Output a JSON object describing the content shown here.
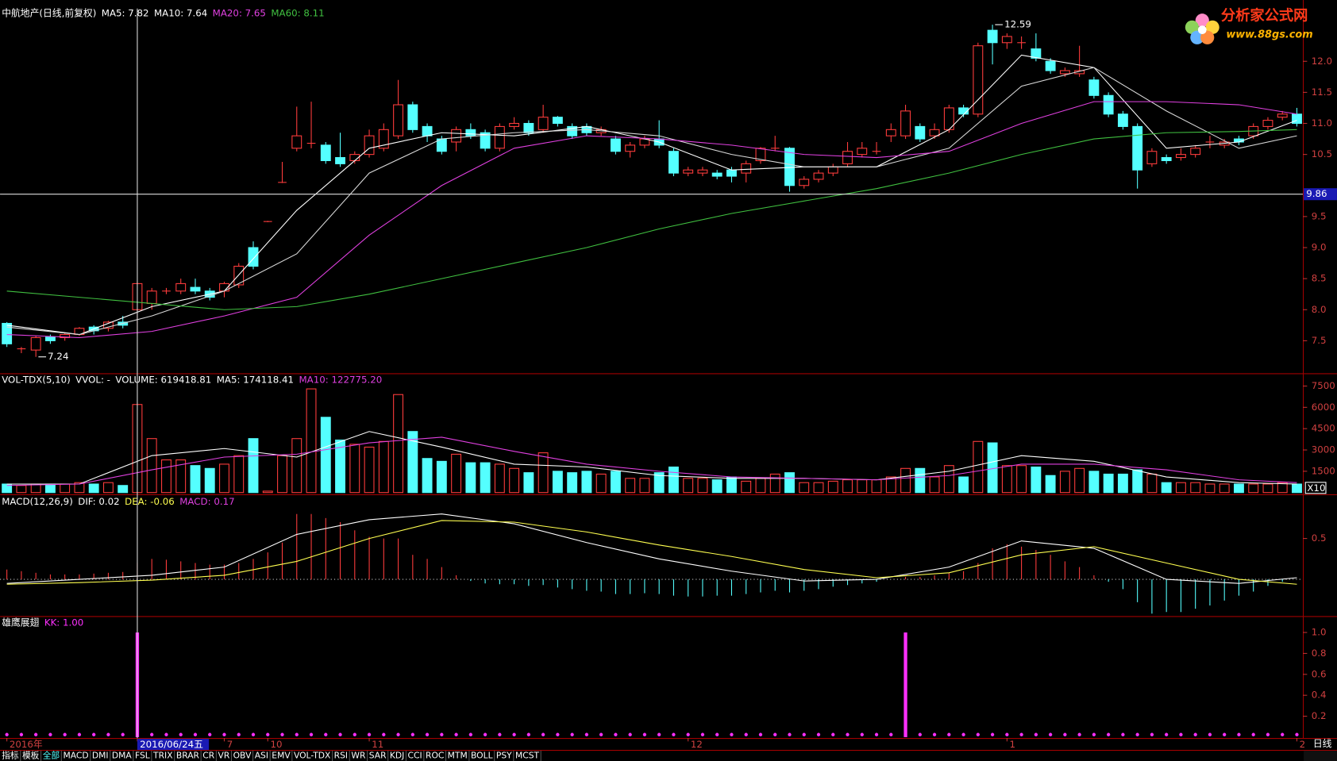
{
  "chart_data": [
    {
      "type": "candlestick",
      "header": [
        {
          "text": "中航地产(日线,前复权)",
          "color": "#ffffff"
        },
        {
          "text": "MA5: 7.82",
          "color": "#ffffff"
        },
        {
          "text": "MA10: 7.64",
          "color": "#ffffff"
        },
        {
          "text": "MA20: 7.65",
          "color": "#e040e0"
        },
        {
          "text": "MA60: 8.11",
          "color": "#40c040"
        }
      ],
      "categories": [
        "2016年",
        null,
        null,
        null,
        null,
        null,
        null,
        null,
        null,
        "2016/06/24五",
        null,
        null,
        null,
        null,
        null,
        "7",
        null,
        null,
        "10",
        null,
        null,
        null,
        null,
        null,
        null,
        "11",
        null,
        null,
        null,
        null,
        null,
        null,
        null,
        null,
        null,
        null,
        null,
        null,
        null,
        null,
        null,
        null,
        null,
        null,
        null,
        null,
        null,
        "12",
        null,
        null,
        null,
        null,
        null,
        null,
        null,
        null,
        null,
        null,
        null,
        null,
        null,
        null,
        null,
        null,
        null,
        null,
        null,
        null,
        null,
        "1",
        null,
        null,
        null,
        null,
        null,
        null,
        null,
        null,
        null,
        null,
        null,
        null,
        null,
        null,
        null,
        null,
        null,
        null,
        null,
        "2"
      ],
      "open": [
        7.78,
        7.37,
        7.35,
        7.56,
        7.55,
        7.6,
        7.72,
        7.7,
        7.8,
        8.0,
        8.1,
        8.3,
        8.3,
        8.36,
        8.3,
        8.3,
        8.4,
        9.0,
        9.42,
        10.05,
        10.6,
        10.68,
        10.65,
        10.45,
        10.4,
        10.5,
        10.6,
        10.8,
        11.3,
        10.95,
        10.75,
        10.7,
        10.9,
        10.85,
        10.6,
        10.95,
        11.0,
        10.9,
        11.1,
        10.95,
        10.95,
        10.85,
        10.75,
        10.55,
        10.65,
        10.75,
        10.55,
        10.2,
        10.2,
        10.2,
        10.25,
        10.2,
        10.4,
        10.6,
        10.6,
        10.0,
        10.1,
        10.2,
        10.35,
        10.5,
        10.55,
        10.8,
        10.8,
        10.95,
        10.8,
        10.9,
        11.25,
        11.15,
        12.5,
        12.3,
        12.3,
        12.2,
        12.0,
        11.8,
        11.8,
        11.7,
        11.45,
        11.15,
        10.95,
        10.35,
        10.45,
        10.45,
        10.5,
        10.7,
        10.65,
        10.75,
        10.8,
        10.95,
        11.1,
        11.15
      ],
      "high": [
        7.8,
        7.4,
        7.58,
        7.6,
        7.62,
        7.72,
        7.75,
        7.82,
        7.9,
        8.45,
        8.35,
        8.35,
        8.5,
        8.5,
        8.35,
        8.45,
        8.75,
        9.1,
        9.43,
        10.38,
        11.27,
        11.35,
        10.7,
        10.85,
        10.55,
        10.9,
        11.0,
        11.7,
        11.35,
        11.0,
        10.8,
        10.95,
        11.0,
        10.9,
        11.0,
        11.1,
        11.05,
        11.3,
        11.12,
        11.0,
        11.0,
        10.95,
        10.8,
        10.7,
        10.8,
        11.05,
        10.6,
        10.3,
        10.3,
        10.25,
        10.3,
        10.4,
        10.62,
        10.8,
        10.62,
        10.15,
        10.25,
        10.35,
        10.7,
        10.7,
        10.7,
        11.0,
        11.3,
        11.0,
        11.0,
        11.3,
        11.3,
        12.3,
        12.59,
        12.45,
        12.4,
        12.45,
        12.05,
        11.9,
        12.25,
        11.75,
        11.5,
        11.2,
        11.0,
        10.6,
        10.5,
        10.6,
        10.65,
        10.8,
        10.75,
        10.8,
        11.0,
        11.1,
        11.2,
        11.25
      ],
      "low": [
        7.4,
        7.3,
        7.24,
        7.45,
        7.5,
        7.58,
        7.6,
        7.65,
        7.7,
        7.6,
        8.0,
        8.25,
        8.25,
        8.25,
        8.15,
        8.2,
        8.35,
        8.65,
        9.41,
        10.04,
        10.55,
        10.6,
        10.35,
        10.3,
        10.35,
        10.45,
        10.55,
        10.75,
        10.85,
        10.7,
        10.5,
        10.55,
        10.75,
        10.55,
        10.55,
        10.9,
        10.8,
        10.85,
        10.95,
        10.75,
        10.8,
        10.8,
        10.5,
        10.45,
        10.6,
        10.6,
        10.15,
        10.15,
        10.15,
        10.1,
        10.05,
        10.05,
        10.35,
        10.55,
        9.9,
        9.95,
        10.05,
        10.15,
        10.3,
        10.45,
        10.5,
        10.7,
        10.75,
        10.7,
        10.75,
        10.85,
        11.1,
        11.1,
        11.95,
        12.2,
        12.2,
        12.0,
        11.8,
        11.75,
        11.75,
        11.4,
        11.1,
        10.9,
        9.95,
        10.3,
        10.35,
        10.4,
        10.45,
        10.6,
        10.6,
        10.65,
        10.75,
        10.9,
        11.05,
        10.95
      ],
      "close": [
        7.45,
        7.37,
        7.55,
        7.5,
        7.6,
        7.7,
        7.66,
        7.8,
        7.75,
        8.42,
        8.3,
        8.3,
        8.42,
        8.3,
        8.2,
        8.42,
        8.7,
        8.7,
        9.42,
        10.05,
        10.8,
        10.68,
        10.4,
        10.35,
        10.5,
        10.8,
        10.9,
        11.3,
        10.9,
        10.8,
        10.55,
        10.9,
        10.8,
        10.6,
        10.95,
        11.0,
        10.85,
        11.1,
        11.0,
        10.8,
        10.85,
        10.9,
        10.55,
        10.65,
        10.75,
        10.65,
        10.2,
        10.25,
        10.25,
        10.15,
        10.15,
        10.35,
        10.6,
        10.6,
        10.0,
        10.1,
        10.2,
        10.3,
        10.55,
        10.6,
        10.55,
        10.9,
        11.2,
        10.75,
        10.9,
        11.25,
        11.15,
        12.25,
        12.3,
        12.4,
        12.3,
        12.05,
        11.85,
        11.85,
        11.85,
        11.45,
        11.15,
        10.95,
        10.25,
        10.55,
        10.4,
        10.5,
        10.6,
        10.7,
        10.7,
        10.7,
        10.95,
        11.05,
        11.15,
        11.0
      ],
      "up_color": "#ff3c3c",
      "down_color": "#54ffff",
      "series": [
        {
          "color": "#ffffff",
          "x": [
            0,
            5,
            10,
            15,
            20,
            25,
            30,
            35,
            40,
            45,
            50,
            55,
            60,
            65,
            70,
            75,
            80,
            85,
            89
          ],
          "values": [
            7.75,
            7.6,
            8.05,
            8.3,
            9.6,
            10.6,
            10.85,
            10.8,
            10.95,
            10.7,
            10.25,
            10.3,
            10.3,
            10.9,
            12.1,
            11.9,
            10.6,
            10.7,
            11.05
          ]
        },
        {
          "color": "#d8d8d8",
          "x": [
            0,
            5,
            10,
            15,
            20,
            25,
            30,
            35,
            40,
            45,
            50,
            55,
            60,
            65,
            70,
            75,
            80,
            85,
            89
          ],
          "values": [
            7.72,
            7.6,
            7.9,
            8.3,
            8.9,
            10.2,
            10.75,
            10.85,
            10.9,
            10.8,
            10.5,
            10.3,
            10.3,
            10.6,
            11.6,
            11.9,
            11.2,
            10.6,
            10.8
          ]
        },
        {
          "color": "#e040e0",
          "x": [
            0,
            5,
            10,
            15,
            20,
            25,
            30,
            35,
            40,
            45,
            50,
            55,
            60,
            65,
            70,
            75,
            80,
            85,
            89
          ],
          "values": [
            7.6,
            7.55,
            7.65,
            7.9,
            8.2,
            9.2,
            10.0,
            10.6,
            10.8,
            10.75,
            10.65,
            10.5,
            10.45,
            10.55,
            11.0,
            11.35,
            11.35,
            11.3,
            11.15
          ]
        },
        {
          "color": "#40c040",
          "x": [
            0,
            5,
            10,
            15,
            20,
            25,
            30,
            35,
            40,
            45,
            50,
            55,
            60,
            65,
            70,
            75,
            80,
            85,
            89
          ],
          "values": [
            8.3,
            8.2,
            8.1,
            8.0,
            8.05,
            8.25,
            8.5,
            8.75,
            9.0,
            9.3,
            9.55,
            9.75,
            9.95,
            10.2,
            10.5,
            10.75,
            10.85,
            10.87,
            10.9
          ]
        }
      ],
      "annotations": [
        {
          "x": 68,
          "y": 12.59
        },
        {
          "x": 2,
          "y": 7.24
        }
      ],
      "cursor": {
        "x": 9,
        "y": 9.86
      },
      "ylim": [
        6.99,
        12.85
      ],
      "yticks": [
        7.5,
        {
          "value": 8,
          "label": "8.0"
        },
        8.5,
        {
          "value": 9,
          "label": "9.0"
        },
        9.5,
        10.5,
        {
          "value": 11,
          "label": "11.0"
        },
        11.5,
        {
          "value": 12,
          "label": "12.0"
        }
      ]
    },
    {
      "type": "bar",
      "bar_style": "volume",
      "header": [
        {
          "text": "VOL-TDX(5,10)",
          "color": "#ffffff"
        },
        {
          "text": "VVOL: -",
          "color": "#ffffff"
        },
        {
          "text": "VOLUME: 619418.81",
          "color": "#ffffff"
        },
        {
          "text": "MA5: 174118.41",
          "color": "#ffffff"
        },
        {
          "text": "MA10: 122775.20",
          "color": "#e040e0"
        }
      ],
      "values": [
        600,
        500,
        600,
        600,
        600,
        700,
        600,
        700,
        500,
        6200,
        3800,
        2300,
        2300,
        1900,
        1700,
        2000,
        2600,
        3800,
        100,
        2600,
        3800,
        7300,
        5300,
        3700,
        3400,
        3200,
        3600,
        6900,
        4300,
        2400,
        2200,
        2700,
        2100,
        2100,
        2000,
        1700,
        1400,
        2800,
        1500,
        1400,
        1500,
        1300,
        1500,
        1000,
        1000,
        1400,
        1800,
        1000,
        1000,
        900,
        1100,
        800,
        1000,
        1300,
        1400,
        700,
        700,
        800,
        900,
        900,
        900,
        1100,
        1700,
        1700,
        1100,
        1900,
        1100,
        3600,
        3500,
        1900,
        1900,
        1800,
        1200,
        1500,
        1700,
        1500,
        1300,
        1300,
        1600,
        1300,
        700,
        700,
        700,
        600,
        600,
        600,
        600,
        600,
        700,
        600
      ],
      "series": [
        {
          "color": "#ffffff",
          "x": [
            0,
            5,
            10,
            15,
            20,
            25,
            30,
            35,
            40,
            45,
            50,
            55,
            60,
            65,
            70,
            75,
            80,
            85,
            89
          ],
          "values": [
            600,
            600,
            2600,
            3100,
            2500,
            4300,
            3200,
            2000,
            1800,
            1200,
            1000,
            1000,
            900,
            1500,
            2600,
            2200,
            1100,
            700,
            600
          ]
        },
        {
          "color": "#e040e0",
          "x": [
            0,
            5,
            10,
            15,
            20,
            25,
            30,
            35,
            40,
            45,
            50,
            55,
            60,
            65,
            70,
            75,
            80,
            85,
            89
          ],
          "values": [
            500,
            600,
            1600,
            2500,
            2700,
            3500,
            3900,
            2900,
            2000,
            1500,
            1100,
            1000,
            900,
            1200,
            2000,
            2000,
            1600,
            900,
            700
          ]
        }
      ],
      "scale_label": "X10",
      "ylim": [
        0,
        8280
      ],
      "yticks": [
        1500,
        3000,
        4500,
        6000,
        7500
      ]
    },
    {
      "type": "bar",
      "bar_style": "stick",
      "header": [
        {
          "text": "MACD(12,26,9)",
          "color": "#ffffff"
        },
        {
          "text": "DIF: 0.02",
          "color": "#ffffff"
        },
        {
          "text": "DEA: -0.06",
          "color": "#ffff50"
        },
        {
          "text": "MACD: 0.17",
          "color": "#e040e0"
        }
      ],
      "values": [
        0.12,
        0.1,
        0.08,
        0.06,
        0.06,
        0.06,
        0.07,
        0.08,
        0.09,
        0.2,
        0.25,
        0.24,
        0.22,
        0.2,
        0.18,
        0.18,
        0.2,
        0.25,
        0.33,
        0.45,
        0.8,
        0.8,
        0.75,
        0.7,
        0.6,
        0.52,
        0.5,
        0.5,
        0.3,
        0.25,
        0.15,
        0.05,
        -0.02,
        -0.05,
        -0.06,
        -0.06,
        -0.08,
        -0.07,
        -0.1,
        -0.12,
        -0.14,
        -0.15,
        -0.18,
        -0.18,
        -0.17,
        -0.18,
        -0.2,
        -0.21,
        -0.21,
        -0.2,
        -0.2,
        -0.18,
        -0.16,
        -0.14,
        -0.16,
        -0.14,
        -0.12,
        -0.09,
        -0.07,
        -0.05,
        -0.03,
        0.0,
        0.03,
        0.03,
        0.05,
        0.08,
        0.1,
        0.2,
        0.38,
        0.43,
        0.4,
        0.36,
        0.3,
        0.22,
        0.15,
        0.05,
        -0.03,
        -0.12,
        -0.28,
        -0.42,
        -0.4,
        -0.4,
        -0.36,
        -0.32,
        -0.26,
        -0.2,
        -0.15,
        -0.08,
        -0.03,
        0.0
      ],
      "series": [
        {
          "color": "#ffffff",
          "x": [
            0,
            5,
            10,
            15,
            20,
            25,
            30,
            35,
            40,
            45,
            50,
            55,
            60,
            65,
            70,
            75,
            80,
            85,
            89
          ],
          "values": [
            -0.05,
            0.0,
            0.05,
            0.15,
            0.55,
            0.73,
            0.8,
            0.68,
            0.45,
            0.25,
            0.1,
            -0.02,
            0.0,
            0.15,
            0.47,
            0.38,
            0.0,
            -0.05,
            0.02
          ]
        },
        {
          "color": "#ffff50",
          "x": [
            0,
            5,
            10,
            15,
            20,
            25,
            30,
            35,
            40,
            45,
            50,
            55,
            60,
            65,
            70,
            75,
            80,
            85,
            89
          ],
          "values": [
            -0.06,
            -0.04,
            -0.01,
            0.05,
            0.22,
            0.5,
            0.72,
            0.7,
            0.58,
            0.42,
            0.28,
            0.12,
            0.02,
            0.08,
            0.3,
            0.4,
            0.2,
            0.0,
            -0.06
          ]
        }
      ],
      "ylim": [
        -0.44,
        1.01
      ],
      "yticks": [
        0.5
      ]
    },
    {
      "type": "bar",
      "bar_style": "spike",
      "color": "#ff30ff",
      "header": [
        {
          "text": "雄鹰展翅",
          "color": "#ffffff"
        },
        {
          "text": "KK: 1.00",
          "color": "#ff30ff"
        }
      ],
      "values": [
        0,
        0,
        0,
        0,
        0,
        0,
        0,
        0,
        0,
        1,
        0,
        0,
        0,
        0,
        0,
        0,
        0,
        0,
        0,
        0,
        0,
        0,
        0,
        0,
        0,
        0,
        0,
        0,
        0,
        0,
        0,
        0,
        0,
        0,
        0,
        0,
        0,
        0,
        0,
        0,
        0,
        0,
        0,
        0,
        0,
        0,
        0,
        0,
        0,
        0,
        0,
        0,
        0,
        0,
        0,
        0,
        0,
        0,
        0,
        0,
        0,
        0,
        1,
        0,
        0,
        0,
        0,
        0,
        0,
        0,
        0,
        0,
        0,
        0,
        0,
        0,
        0,
        0,
        0,
        0,
        0,
        0,
        0,
        0,
        0,
        0,
        0,
        0,
        0,
        0
      ],
      "ylim": [
        0,
        1.14
      ],
      "yticks": [
        0.2,
        0.4,
        0.6,
        0.8,
        {
          "value": 1,
          "label": "1.0"
        }
      ]
    }
  ],
  "period": "日线",
  "logo": {
    "name": "分析家公式网",
    "url": "www.88gs.com"
  },
  "tabs": [
    "指标",
    "模板",
    "全部",
    "MACD",
    "DMI",
    "DMA",
    "FSL",
    "TRIX",
    "BRAR",
    "CR",
    "VR",
    "OBV",
    "ASI",
    "EMV",
    "VOL-TDX",
    "RSI",
    "WR",
    "SAR",
    "KDJ",
    "CCI",
    "ROC",
    "MTM",
    "BOLL",
    "PSY",
    "MCST"
  ],
  "active_tab": 2
}
